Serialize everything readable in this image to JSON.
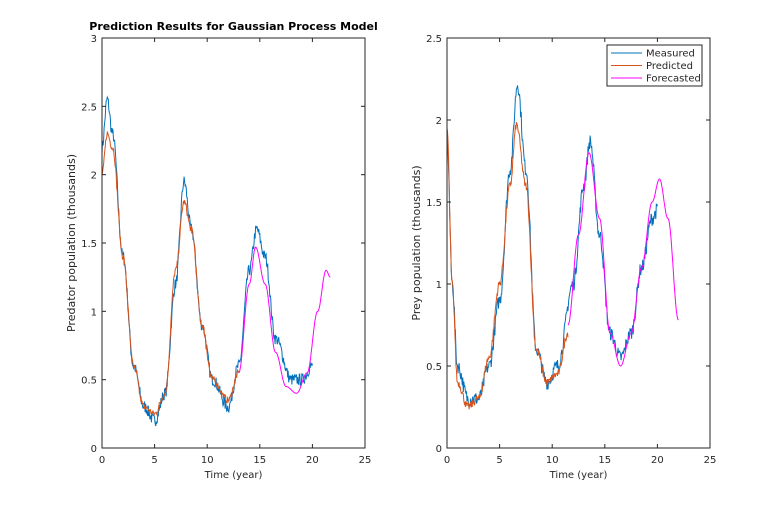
{
  "chart_data": [
    {
      "type": "line",
      "title": "Prediction Results for Gaussian Process Model",
      "xlabel": "Time (year)",
      "ylabel": "Predator population (thousands)",
      "xlim": [
        0,
        25
      ],
      "ylim": [
        0,
        3
      ],
      "xticks": [
        0,
        5,
        10,
        15,
        20,
        25
      ],
      "yticks": [
        0,
        0.5,
        1,
        1.5,
        2,
        2.5,
        3
      ],
      "series": [
        {
          "name": "Measured",
          "color": "#0072BD",
          "x": [
            0,
            0.5,
            1,
            2,
            3,
            4,
            5,
            6,
            7,
            7.8,
            8.5,
            9.5,
            10.5,
            12,
            13,
            14,
            14.7,
            15.5,
            16.5,
            18,
            19,
            20
          ],
          "y": [
            2.2,
            2.55,
            2.3,
            1.4,
            0.6,
            0.3,
            0.2,
            0.4,
            1.2,
            1.95,
            1.6,
            0.9,
            0.5,
            0.3,
            0.6,
            1.3,
            1.6,
            1.4,
            0.8,
            0.5,
            0.5,
            0.6
          ]
        },
        {
          "name": "Predicted",
          "color": "#D95319",
          "x": [
            0,
            0.5,
            1,
            2,
            3,
            4,
            5,
            6,
            7,
            7.8,
            8.5,
            9.5,
            10.5,
            12,
            13
          ],
          "y": [
            2.0,
            2.3,
            2.2,
            1.4,
            0.6,
            0.3,
            0.25,
            0.4,
            1.3,
            1.8,
            1.6,
            0.9,
            0.5,
            0.35,
            0.55
          ]
        },
        {
          "name": "Forecasted",
          "color": "#FF00FF",
          "x": [
            13,
            14,
            14.6,
            15.5,
            16.5,
            17.5,
            18.5,
            19.5,
            20.5,
            21.3,
            21.7
          ],
          "y": [
            0.55,
            1.2,
            1.47,
            1.2,
            0.7,
            0.45,
            0.4,
            0.55,
            1.0,
            1.3,
            1.25
          ]
        }
      ]
    },
    {
      "type": "line",
      "title": "",
      "xlabel": "Time (year)",
      "ylabel": "Prey population (thousands)",
      "xlim": [
        0,
        25
      ],
      "ylim": [
        0,
        2.5
      ],
      "xticks": [
        0,
        5,
        10,
        15,
        20,
        25
      ],
      "yticks": [
        0,
        0.5,
        1,
        1.5,
        2,
        2.5
      ],
      "legend": "top-right",
      "series": [
        {
          "name": "Measured",
          "color": "#0072BD",
          "x": [
            0,
            0.5,
            1,
            2,
            3,
            4,
            5,
            6,
            6.7,
            7.5,
            8.5,
            9.5,
            10.5,
            12,
            13,
            13.6,
            14.5,
            15.5,
            16.5,
            17.5,
            18.5,
            19.5,
            20
          ],
          "y": [
            1.9,
            1.0,
            0.5,
            0.3,
            0.3,
            0.5,
            0.9,
            1.7,
            2.22,
            1.7,
            0.6,
            0.4,
            0.5,
            1.0,
            1.6,
            1.87,
            1.3,
            0.7,
            0.55,
            0.7,
            1.1,
            1.4,
            1.45
          ]
        },
        {
          "name": "Predicted",
          "color": "#D95319",
          "x": [
            0,
            0.5,
            1,
            2,
            3,
            4,
            5,
            6,
            6.6,
            7.5,
            8.5,
            9.5,
            10.5,
            11.5
          ],
          "y": [
            1.95,
            1.0,
            0.4,
            0.25,
            0.3,
            0.55,
            1.0,
            1.6,
            1.97,
            1.6,
            0.6,
            0.4,
            0.45,
            0.7
          ]
        },
        {
          "name": "Forecasted",
          "color": "#FF00FF",
          "x": [
            11.5,
            12.5,
            13.5,
            14.5,
            15.5,
            16.5,
            17.5,
            18.5,
            19.5,
            20.2,
            21,
            22
          ],
          "y": [
            0.75,
            1.3,
            1.8,
            1.4,
            0.7,
            0.5,
            0.7,
            1.1,
            1.5,
            1.64,
            1.4,
            0.78
          ]
        }
      ]
    }
  ]
}
